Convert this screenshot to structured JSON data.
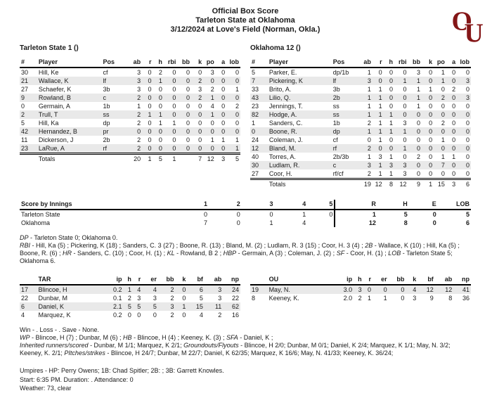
{
  "header": {
    "title": "Official Box Score",
    "subtitle": "Tarleton State at Oklahoma",
    "date_line": "3/12/2024 at Love's Field (Norman, Okla.)",
    "logo_text_o": "O",
    "logo_text_u": "U",
    "logo_color": "#841617"
  },
  "batting": {
    "columns": [
      "#",
      "Player",
      "Pos",
      "ab",
      "r",
      "h",
      "rbi",
      "bb",
      "k",
      "po",
      "a",
      "lob"
    ],
    "away": {
      "team_line": "Tarleton State 1 ()",
      "rows": [
        [
          "30",
          "Hill, Ke",
          "cf",
          "3",
          "0",
          "2",
          "0",
          "0",
          "0",
          "3",
          "0",
          "0"
        ],
        [
          "21",
          "Wallace, K",
          "lf",
          "3",
          "0",
          "1",
          "0",
          "0",
          "2",
          "0",
          "0",
          "0"
        ],
        [
          "27",
          "Schaefer, K",
          "3b",
          "3",
          "0",
          "0",
          "0",
          "0",
          "3",
          "2",
          "0",
          "1"
        ],
        [
          "9",
          "Rowland, B",
          "c",
          "2",
          "0",
          "0",
          "0",
          "0",
          "2",
          "1",
          "0",
          "0"
        ],
        [
          "0",
          "Germain, A",
          "1b",
          "1",
          "0",
          "0",
          "0",
          "0",
          "0",
          "4",
          "0",
          "2"
        ],
        [
          "2",
          "Trull, T",
          "ss",
          "2",
          "1",
          "1",
          "0",
          "0",
          "0",
          "1",
          "0",
          "0"
        ],
        [
          "5",
          "Hill, Ka",
          "dp",
          "2",
          "0",
          "1",
          "1",
          "0",
          "0",
          "0",
          "0",
          "0"
        ],
        [
          "42",
          "Hernandez, B",
          "pr",
          "0",
          "0",
          "0",
          "0",
          "0",
          "0",
          "0",
          "0",
          "0"
        ],
        [
          "11",
          "Dickerson, J",
          "2b",
          "2",
          "0",
          "0",
          "0",
          "0",
          "0",
          "1",
          "1",
          "1"
        ],
        [
          "23",
          "LaRue, A",
          "rf",
          "2",
          "0",
          "0",
          "0",
          "0",
          "0",
          "0",
          "0",
          "1"
        ]
      ],
      "totals": [
        "",
        "Totals",
        "",
        "20",
        "1",
        "5",
        "1",
        "",
        "7",
        "12",
        "3",
        "5"
      ]
    },
    "home": {
      "team_line": "Oklahoma 12 ()",
      "rows": [
        [
          "5",
          "Parker, E.",
          "dp/1b",
          "1",
          "0",
          "0",
          "0",
          "3",
          "0",
          "1",
          "0",
          "0"
        ],
        [
          "7",
          "Pickering, K",
          "lf",
          "3",
          "0",
          "0",
          "1",
          "1",
          "0",
          "1",
          "0",
          "3"
        ],
        [
          "33",
          "Brito, A.",
          "3b",
          "1",
          "1",
          "0",
          "0",
          "1",
          "1",
          "0",
          "2",
          "0"
        ],
        [
          "43",
          "Lilio, Q.",
          "2b",
          "1",
          "1",
          "0",
          "0",
          "1",
          "0",
          "2",
          "0",
          "3"
        ],
        [
          "23",
          "Jennings, T.",
          "ss",
          "1",
          "1",
          "0",
          "0",
          "1",
          "0",
          "0",
          "0",
          "0"
        ],
        [
          "82",
          "Hodge, A.",
          "ss",
          "1",
          "1",
          "1",
          "0",
          "0",
          "0",
          "0",
          "0",
          "0"
        ],
        [
          "1",
          "Sanders, C.",
          "1b",
          "2",
          "1",
          "1",
          "3",
          "0",
          "0",
          "2",
          "0",
          "0"
        ],
        [
          "0",
          "Boone, R.",
          "dp",
          "1",
          "1",
          "1",
          "1",
          "0",
          "0",
          "0",
          "0",
          "0"
        ],
        [
          "24",
          "Coleman, J.",
          "cf",
          "0",
          "1",
          "0",
          "0",
          "0",
          "0",
          "1",
          "0",
          "0"
        ],
        [
          "12",
          "Bland, M.",
          "rf",
          "2",
          "0",
          "0",
          "1",
          "0",
          "0",
          "0",
          "0",
          "0"
        ],
        [
          "40",
          "Torres, A.",
          "2b/3b",
          "1",
          "3",
          "1",
          "0",
          "2",
          "0",
          "1",
          "1",
          "0"
        ],
        [
          "30",
          "Ludlam, R.",
          "c",
          "3",
          "1",
          "3",
          "3",
          "0",
          "0",
          "7",
          "0",
          "0"
        ],
        [
          "27",
          "Coor, H.",
          "rf/cf",
          "2",
          "1",
          "1",
          "3",
          "0",
          "0",
          "0",
          "0",
          "0"
        ]
      ],
      "totals": [
        "",
        "Totals",
        "",
        "19",
        "12",
        "8",
        "12",
        "9",
        "1",
        "15",
        "3",
        "6"
      ]
    }
  },
  "line_score": {
    "label": "Score by Innings",
    "innings": [
      "1",
      "2",
      "3",
      "4",
      "5"
    ],
    "result_cols": [
      "R",
      "H",
      "E",
      "LOB"
    ],
    "rows": [
      {
        "team": "Tarleton State",
        "innings": [
          "0",
          "0",
          "0",
          "1",
          "0"
        ],
        "results": [
          "1",
          "5",
          "0",
          "5"
        ]
      },
      {
        "team": "Oklahoma",
        "innings": [
          "7",
          "0",
          "1",
          "4",
          ""
        ],
        "results": [
          "12",
          "8",
          "0",
          "6"
        ]
      }
    ]
  },
  "game_notes": [
    [
      {
        "em": "DP"
      },
      {
        "t": " - Tarleton State 0; Oklahoma 0."
      }
    ],
    [
      {
        "em": "RBI"
      },
      {
        "t": " - Hill, Ka (5) ; Pickering, K (18) ; Sanders, C. 3 (27) ; Boone, R. (13) ; Bland, M. (2) ; Ludlam, R. 3 (15) ; Coor, H. 3 (4) ; "
      },
      {
        "em": "2B"
      },
      {
        "t": " - Wallace, K (10) ; Hill, Ka (5) ; Boone, R. (6) ; "
      },
      {
        "em": "HR"
      },
      {
        "t": " - Sanders, C. (10) ; Coor, H. (1) ; "
      },
      {
        "em": "KL"
      },
      {
        "t": " - Rowland, B 2 ; "
      },
      {
        "em": "HBP"
      },
      {
        "t": " - Germain, A (3) ; Coleman, J. (2) ; "
      },
      {
        "em": "SF"
      },
      {
        "t": " - Coor, H. (1) ; "
      },
      {
        "em": "LOB"
      },
      {
        "t": " - Tarleton State 5; Oklahoma 6."
      }
    ]
  ],
  "pitching": {
    "columns": [
      "",
      "",
      "ip",
      "h",
      "r",
      "er",
      "bb",
      "k",
      "bf",
      "ab",
      "np"
    ],
    "away": {
      "team": "TAR",
      "rows": [
        [
          "17",
          "Blincoe, H",
          "0.2",
          "1",
          "4",
          "4",
          "2",
          "0",
          "6",
          "3",
          "24"
        ],
        [
          "22",
          "Dunbar, M",
          "0.1",
          "2",
          "3",
          "3",
          "2",
          "0",
          "5",
          "3",
          "22"
        ],
        [
          "6",
          "Daniel, K",
          "2.1",
          "5",
          "5",
          "5",
          "3",
          "1",
          "15",
          "11",
          "62"
        ],
        [
          "4",
          "Marquez, K",
          "0.2",
          "0",
          "0",
          "0",
          "2",
          "0",
          "4",
          "2",
          "16"
        ]
      ]
    },
    "home": {
      "team": "OU",
      "rows": [
        [
          "19",
          "May, N.",
          "3.0",
          "3",
          "0",
          "0",
          "0",
          "4",
          "12",
          "12",
          "41"
        ],
        [
          "8",
          "Keeney, K.",
          "2.0",
          "2",
          "1",
          "1",
          "0",
          "3",
          "9",
          "8",
          "36"
        ]
      ]
    }
  },
  "pitching_notes": [
    [
      {
        "t": "Win - . Loss - . Save - None."
      }
    ],
    [
      {
        "em": "WP"
      },
      {
        "t": " - Blincoe, H (7) ; Dunbar, M (6) ; "
      },
      {
        "em": "HB"
      },
      {
        "t": " - Blincoe, H (4) ; Keeney, K. (3) ; "
      },
      {
        "em": "SFA"
      },
      {
        "t": " - Daniel, K ;"
      }
    ],
    [
      {
        "em": "Inherited runners/scored"
      },
      {
        "t": " - Dunbar, M 1/1; Marquez, K 2/1; "
      },
      {
        "em": "Groundouts/Flyouts"
      },
      {
        "t": " - Blincoe, H 2/0; Dunbar, M 0/1; Daniel, K 2/4; Marquez, K 1/1; May, N. 3/2; Keeney, K. 2/1; "
      },
      {
        "em": "PItches/strikes"
      },
      {
        "t": " - Blincoe, H 24/7; Dunbar, M 22/7; Daniel, K 62/35; Marquez, K 16/6; May, N. 41/33; Keeney, K. 36/24;"
      }
    ]
  ],
  "footer": {
    "umpires": "Umpires - HP: Perry Owens; 1B: Chad Spitler; 2B: ; 3B: Garrett Knowles.",
    "start_line": "Start: 6:35 PM. Duration: . Attendance: 0",
    "weather_line": "Weather: 73, clear"
  }
}
